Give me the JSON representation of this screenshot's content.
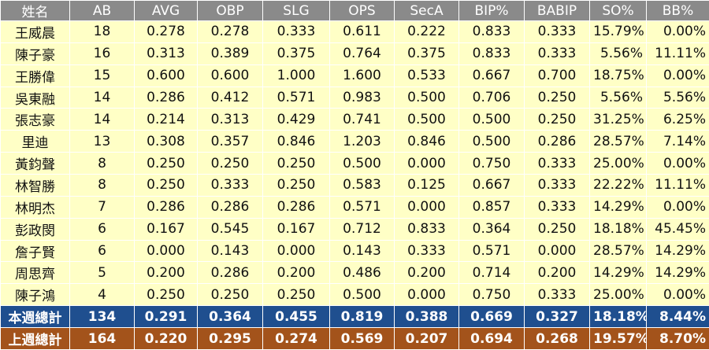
{
  "table": {
    "header": [
      "姓名",
      "AB",
      "AVG",
      "OBP",
      "SLG",
      "OPS",
      "SecA",
      "BIP%",
      "BABIP",
      "SO%",
      "BB%"
    ],
    "rows": [
      [
        "王威晨",
        "18",
        "0.278",
        "0.278",
        "0.333",
        "0.611",
        "0.222",
        "0.833",
        "0.333",
        "15.79%",
        "0.00%"
      ],
      [
        "陳子豪",
        "16",
        "0.313",
        "0.389",
        "0.375",
        "0.764",
        "0.375",
        "0.833",
        "0.333",
        "5.56%",
        "11.11%"
      ],
      [
        "王勝偉",
        "15",
        "0.600",
        "0.600",
        "1.000",
        "1.600",
        "0.533",
        "0.667",
        "0.700",
        "18.75%",
        "0.00%"
      ],
      [
        "吳東融",
        "14",
        "0.286",
        "0.412",
        "0.571",
        "0.983",
        "0.500",
        "0.706",
        "0.250",
        "5.56%",
        "5.56%"
      ],
      [
        "張志豪",
        "14",
        "0.214",
        "0.313",
        "0.429",
        "0.741",
        "0.500",
        "0.500",
        "0.250",
        "31.25%",
        "6.25%"
      ],
      [
        "里迪",
        "13",
        "0.308",
        "0.357",
        "0.846",
        "1.203",
        "0.846",
        "0.500",
        "0.286",
        "28.57%",
        "7.14%"
      ],
      [
        "黃鈞聲",
        "8",
        "0.250",
        "0.250",
        "0.250",
        "0.500",
        "0.000",
        "0.750",
        "0.333",
        "25.00%",
        "0.00%"
      ],
      [
        "林智勝",
        "8",
        "0.250",
        "0.333",
        "0.250",
        "0.583",
        "0.125",
        "0.667",
        "0.333",
        "22.22%",
        "11.11%"
      ],
      [
        "林明杰",
        "7",
        "0.286",
        "0.286",
        "0.286",
        "0.571",
        "0.000",
        "0.857",
        "0.333",
        "14.29%",
        "0.00%"
      ],
      [
        "彭政閔",
        "6",
        "0.167",
        "0.545",
        "0.167",
        "0.712",
        "0.833",
        "0.364",
        "0.250",
        "18.18%",
        "45.45%"
      ],
      [
        "詹子賢",
        "6",
        "0.000",
        "0.143",
        "0.000",
        "0.143",
        "0.333",
        "0.571",
        "0.000",
        "28.57%",
        "14.29%"
      ],
      [
        "周思齊",
        "5",
        "0.200",
        "0.286",
        "0.200",
        "0.486",
        "0.200",
        "0.714",
        "0.200",
        "14.29%",
        "14.29%"
      ],
      [
        "陳子鴻",
        "4",
        "0.250",
        "0.250",
        "0.250",
        "0.500",
        "0.000",
        "0.750",
        "0.333",
        "25.00%",
        "0.00%"
      ]
    ],
    "totals": [
      [
        "本週總計",
        "134",
        "0.291",
        "0.364",
        "0.455",
        "0.819",
        "0.388",
        "0.669",
        "0.327",
        "18.18%",
        "8.44%"
      ],
      [
        "上週總計",
        "164",
        "0.220",
        "0.295",
        "0.274",
        "0.569",
        "0.207",
        "0.694",
        "0.268",
        "19.57%",
        "8.70%"
      ]
    ]
  }
}
